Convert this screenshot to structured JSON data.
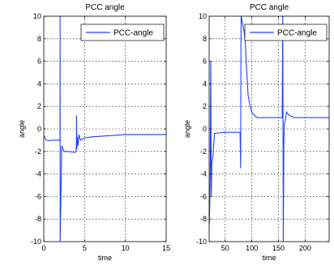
{
  "chart_data": [
    {
      "type": "line",
      "title": "PCC angle",
      "xlabel": "time",
      "ylabel": "angle",
      "xlim": [
        0,
        15
      ],
      "ylim": [
        -10,
        10
      ],
      "xticks": [
        0,
        5,
        10,
        15
      ],
      "yticks": [
        -10,
        -8,
        -6,
        -4,
        -2,
        0,
        2,
        4,
        6,
        8,
        10
      ],
      "grid": true,
      "legend_position": "top-right",
      "line_color": "#1f3fff",
      "series": [
        {
          "name": "PCC-angle",
          "x": [
            0.0,
            0.3,
            0.6,
            0.9,
            1.2,
            1.5,
            1.8,
            1.99,
            2.0,
            2.01,
            2.2,
            2.5,
            3.0,
            3.5,
            3.8,
            3.95,
            4.0,
            4.02,
            4.05,
            4.1,
            4.2,
            4.3,
            4.5,
            5.0,
            6.0,
            7.0,
            8.0,
            9.0,
            10.0,
            12.0,
            15.0
          ],
          "y": [
            -0.6,
            -1.0,
            -1.05,
            -1.0,
            -1.0,
            -1.0,
            -1.0,
            -1.0,
            10,
            -10,
            -1.5,
            -2.0,
            -2.0,
            -2.05,
            -2.1,
            -2.0,
            -1.3,
            1.2,
            -1.8,
            -0.7,
            -1.5,
            -0.5,
            -1.0,
            -0.8,
            -0.7,
            -0.65,
            -0.6,
            -0.55,
            -0.5,
            -0.5,
            -0.5
          ]
        }
      ]
    },
    {
      "type": "line",
      "title": "PCC angle",
      "xlabel": "time",
      "ylabel": "angle",
      "xlim": [
        20,
        245
      ],
      "ylim": [
        -10,
        10
      ],
      "xticks": [
        50,
        100,
        150,
        200
      ],
      "yticks": [
        -10,
        -8,
        -6,
        -4,
        -2,
        0,
        2,
        4,
        6,
        8,
        10
      ],
      "grid": true,
      "legend_position": "top-right",
      "line_color": "#1f3fff",
      "series": [
        {
          "name": "PCC-angle",
          "x": [
            20,
            21,
            22,
            23,
            24,
            25,
            27,
            30,
            40,
            50,
            60,
            70,
            75,
            78,
            79,
            79.5,
            80,
            81,
            82,
            84,
            86,
            88,
            90,
            93,
            97,
            100,
            105,
            110,
            120,
            130,
            140,
            150,
            157,
            158,
            159,
            160,
            161,
            163,
            165,
            170,
            180,
            200,
            220,
            245
          ],
          "y": [
            -8.5,
            -7,
            -4,
            6,
            -6,
            -3,
            -2.5,
            -0.4,
            -0.35,
            -0.3,
            -0.3,
            -0.3,
            -0.3,
            -0.3,
            -3.5,
            6,
            10,
            9.8,
            9.5,
            9.0,
            8.5,
            7.5,
            5.5,
            3.0,
            2.0,
            1.5,
            1.2,
            1.0,
            1.0,
            1.0,
            1.0,
            1.0,
            1.0,
            10,
            -10,
            -1.5,
            0.5,
            0.8,
            1.5,
            1.2,
            1.0,
            1.0,
            1.0,
            1.0
          ]
        }
      ]
    }
  ]
}
